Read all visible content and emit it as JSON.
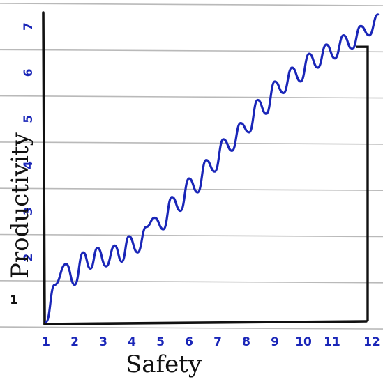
{
  "chart_data": {
    "type": "line",
    "xlabel": "Safety",
    "ylabel": "Productivity",
    "x_ticks": [
      "1",
      "2",
      "3",
      "4",
      "5",
      "6",
      "7",
      "8",
      "9",
      "10",
      "11",
      "12"
    ],
    "y_ticks": [
      "1",
      "2",
      "3",
      "4",
      "5",
      "6",
      "7"
    ],
    "xlim": [
      1,
      12.6
    ],
    "ylim": [
      0.5,
      7.2
    ],
    "grid": true,
    "series": [
      {
        "x": [
          1,
          1.3,
          1.7,
          2.0,
          2.3,
          2.55,
          2.8,
          3.1,
          3.4,
          3.65,
          3.9,
          4.2,
          4.5,
          4.8,
          5.1,
          5.4,
          5.7,
          6.0,
          6.3,
          6.6,
          6.9,
          7.2,
          7.5,
          7.8,
          8.1,
          8.4,
          8.7,
          9.0,
          9.3,
          9.6,
          9.9,
          10.2,
          10.5,
          10.8,
          11.1,
          11.4,
          11.7,
          12.0,
          12.3,
          12.6
        ],
        "y": [
          0.55,
          1.35,
          1.8,
          1.35,
          2.05,
          1.7,
          2.15,
          1.75,
          2.2,
          1.85,
          2.4,
          2.05,
          2.6,
          2.8,
          2.55,
          3.25,
          2.95,
          3.65,
          3.35,
          4.05,
          3.8,
          4.5,
          4.25,
          4.85,
          4.65,
          5.35,
          5.05,
          5.75,
          5.5,
          6.05,
          5.75,
          6.35,
          6.05,
          6.55,
          6.25,
          6.75,
          6.45,
          6.95,
          6.75,
          7.2
        ],
        "color": "#1a26b8"
      }
    ],
    "drop_line": {
      "x": 12,
      "y": 6.5
    }
  },
  "colors": {
    "ink": "#111111",
    "pen": "#1a26b8",
    "ruled": "#b9b9b9"
  }
}
